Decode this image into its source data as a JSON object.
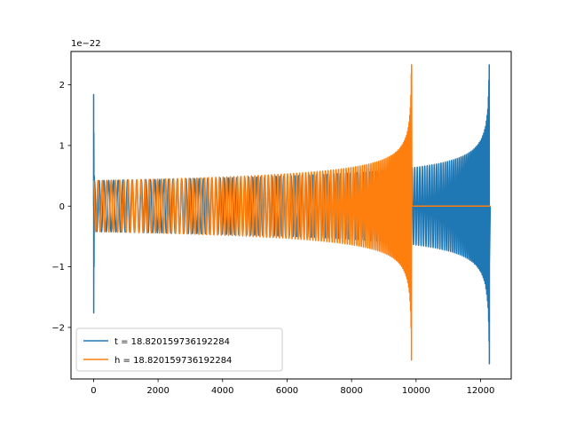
{
  "chart_data": {
    "type": "line",
    "title": "",
    "xlabel": "",
    "ylabel": "",
    "offset_label": "1e−22",
    "xlim": [
      -700,
      12950
    ],
    "ylim": [
      -2.85,
      2.55
    ],
    "x_ticks": [
      0,
      2000,
      4000,
      6000,
      8000,
      10000,
      12000
    ],
    "x_tick_labels": [
      "0",
      "2000",
      "4000",
      "6000",
      "8000",
      "10000",
      "12000"
    ],
    "y_ticks": [
      -2,
      -1,
      0,
      1,
      2
    ],
    "y_tick_labels": [
      "−2",
      "−1",
      "0",
      "1",
      "2"
    ],
    "grid": false,
    "legend_position": "lower-left",
    "series": [
      {
        "name": "t = 18.820159736192284",
        "color": "#1f77b4",
        "description_points": {
          "initial_spike": {
            "x": 0,
            "ymax": 1.84,
            "ymin": -1.76
          },
          "start_amplitude": 0.42,
          "end_x": 12300,
          "peak_x": 12260,
          "peak_ymax": 2.33,
          "peak_ymin": -2.6
        }
      },
      {
        "name": "h = 18.820159736192284",
        "color": "#ff7f0e",
        "description_points": {
          "start_x": 0,
          "start_amplitude": 0.42,
          "peak_x": 9850,
          "peak_ymax": 2.33,
          "peak_ymin": -2.6,
          "flat_end_x": 12300
        }
      }
    ]
  }
}
